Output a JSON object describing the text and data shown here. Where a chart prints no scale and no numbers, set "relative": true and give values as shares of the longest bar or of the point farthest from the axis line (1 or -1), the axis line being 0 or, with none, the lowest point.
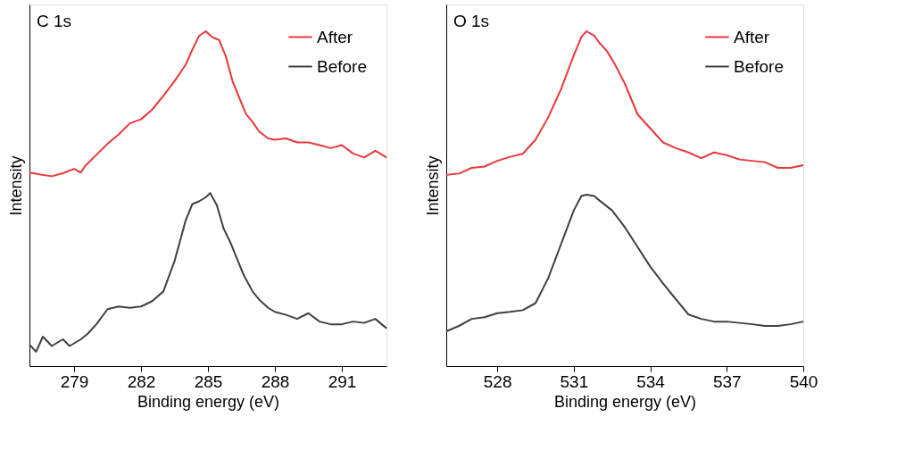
{
  "chart_data": [
    {
      "type": "line",
      "xlabel": "Binding energy (eV)",
      "ylabel": "Intensity",
      "annotations": [
        "C 1s"
      ],
      "xlim": [
        277,
        293
      ],
      "xticks": [
        279,
        282,
        285,
        288,
        291
      ],
      "relative": true,
      "tick_labels": "x",
      "grid": false,
      "legend": "top right",
      "line_style": "solid",
      "marker": "none",
      "series": [
        {
          "name": "After",
          "color": "#e8383d",
          "x": [
            277.0,
            277.5,
            278.0,
            278.5,
            279.0,
            279.3,
            279.5,
            280.0,
            280.5,
            281.0,
            281.5,
            282.0,
            282.5,
            283.0,
            283.5,
            284.0,
            284.3,
            284.6,
            284.9,
            285.2,
            285.5,
            285.8,
            286.1,
            286.4,
            286.7,
            287.0,
            287.3,
            287.7,
            288.0,
            288.5,
            289.0,
            289.5,
            290.0,
            290.5,
            291.0,
            291.5,
            292.0,
            292.5,
            293.0
          ],
          "values": [
            0.578,
            0.572,
            0.567,
            0.576,
            0.589,
            0.578,
            0.598,
            0.631,
            0.664,
            0.692,
            0.725,
            0.737,
            0.766,
            0.807,
            0.851,
            0.9,
            0.945,
            0.986,
            1.0,
            0.982,
            0.974,
            0.925,
            0.851,
            0.802,
            0.753,
            0.729,
            0.7,
            0.68,
            0.676,
            0.68,
            0.668,
            0.668,
            0.66,
            0.651,
            0.66,
            0.635,
            0.623,
            0.643,
            0.623
          ]
        },
        {
          "name": "Before",
          "color": "#404040",
          "x": [
            277.0,
            277.3,
            277.6,
            278.0,
            278.5,
            278.8,
            279.3,
            279.6,
            280.0,
            280.5,
            281.0,
            281.5,
            282.0,
            282.5,
            283.0,
            283.5,
            284.0,
            284.3,
            284.6,
            284.9,
            285.1,
            285.4,
            285.7,
            286.0,
            286.3,
            286.6,
            287.0,
            287.3,
            287.7,
            288.0,
            288.5,
            289.0,
            289.5,
            290.0,
            290.5,
            291.0,
            291.5,
            292.0,
            292.5,
            293.0
          ],
          "values": [
            0.064,
            0.043,
            0.088,
            0.06,
            0.08,
            0.06,
            0.08,
            0.096,
            0.125,
            0.17,
            0.178,
            0.174,
            0.178,
            0.194,
            0.223,
            0.313,
            0.435,
            0.484,
            0.492,
            0.504,
            0.517,
            0.48,
            0.411,
            0.37,
            0.321,
            0.272,
            0.223,
            0.198,
            0.174,
            0.162,
            0.153,
            0.141,
            0.158,
            0.133,
            0.125,
            0.125,
            0.133,
            0.129,
            0.141,
            0.113
          ]
        }
      ]
    },
    {
      "type": "line",
      "xlabel": "Binding energy (eV)",
      "ylabel": "Intensity",
      "annotations": [
        "O 1s"
      ],
      "xlim": [
        526,
        540
      ],
      "xticks": [
        528,
        531,
        534,
        537,
        540
      ],
      "relative": true,
      "tick_labels": "x",
      "grid": false,
      "legend": "top right",
      "line_style": "solid",
      "marker": "none",
      "series": [
        {
          "name": "After",
          "color": "#e8383d",
          "x": [
            526.0,
            526.5,
            527.0,
            527.5,
            528.0,
            528.5,
            529.0,
            529.5,
            530.0,
            530.5,
            531.0,
            531.3,
            531.5,
            531.8,
            532.0,
            532.3,
            532.6,
            533.0,
            533.5,
            534.0,
            534.5,
            535.0,
            535.5,
            536.0,
            536.5,
            537.0,
            537.5,
            538.0,
            538.5,
            539.0,
            539.5,
            540.0
          ],
          "values": [
            0.571,
            0.575,
            0.592,
            0.596,
            0.613,
            0.625,
            0.634,
            0.676,
            0.743,
            0.827,
            0.928,
            0.983,
            1.0,
            0.987,
            0.966,
            0.941,
            0.903,
            0.844,
            0.752,
            0.71,
            0.668,
            0.651,
            0.638,
            0.621,
            0.638,
            0.63,
            0.617,
            0.613,
            0.609,
            0.592,
            0.592,
            0.6
          ]
        },
        {
          "name": "Before",
          "color": "#404040",
          "x": [
            526.0,
            526.5,
            527.0,
            527.5,
            528.0,
            528.5,
            529.0,
            529.5,
            530.0,
            530.5,
            531.0,
            531.3,
            531.5,
            531.8,
            532.0,
            532.5,
            533.0,
            533.5,
            534.0,
            534.5,
            535.0,
            535.5,
            536.0,
            536.5,
            537.0,
            537.5,
            538.0,
            538.5,
            539.0,
            539.5,
            540.0
          ],
          "values": [
            0.104,
            0.12,
            0.141,
            0.146,
            0.158,
            0.162,
            0.167,
            0.188,
            0.263,
            0.364,
            0.465,
            0.508,
            0.512,
            0.508,
            0.495,
            0.465,
            0.415,
            0.356,
            0.297,
            0.247,
            0.2,
            0.154,
            0.141,
            0.133,
            0.133,
            0.129,
            0.125,
            0.12,
            0.12,
            0.125,
            0.133
          ]
        }
      ]
    }
  ]
}
